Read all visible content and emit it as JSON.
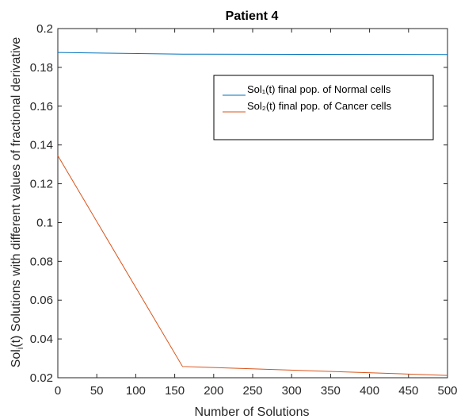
{
  "chart_data": {
    "type": "line",
    "title": "Patient 4",
    "xlabel": "Number of Solutions",
    "ylabel": "Sol_i(t) Solutions with different values of fractional derivative",
    "ylabel_prefix": "Sol",
    "ylabel_sub": "i",
    "ylabel_rest": "(t) Solutions with different values of fractional derivative",
    "xlim": [
      0,
      500
    ],
    "ylim": [
      0.02,
      0.2
    ],
    "xticks": [
      0,
      50,
      100,
      150,
      200,
      250,
      300,
      350,
      400,
      450,
      500
    ],
    "xtick_labels": [
      "0",
      "50",
      "100",
      "150",
      "200",
      "250",
      "300",
      "350",
      "400",
      "450",
      "500"
    ],
    "yticks": [
      0.02,
      0.04,
      0.06,
      0.08,
      0.1,
      0.12,
      0.14,
      0.16,
      0.18,
      0.2
    ],
    "ytick_labels": [
      "0.02",
      "0.04",
      "0.06",
      "0.08",
      "0.1",
      "0.12",
      "0.14",
      "0.16",
      "0.18",
      "0.2"
    ],
    "grid": false,
    "legend_position": "top-right",
    "series": [
      {
        "name": "Sol₁(t) final pop. of Normal cells",
        "color": "#0072BD",
        "x": [
          0,
          160,
          500
        ],
        "y": [
          0.1877,
          0.1868,
          0.1866
        ]
      },
      {
        "name": "Sol₂(t) final pop. of Cancer cells",
        "color": "#D95319",
        "x": [
          0,
          160,
          500
        ],
        "y": [
          0.1345,
          0.0258,
          0.0212
        ]
      }
    ]
  }
}
